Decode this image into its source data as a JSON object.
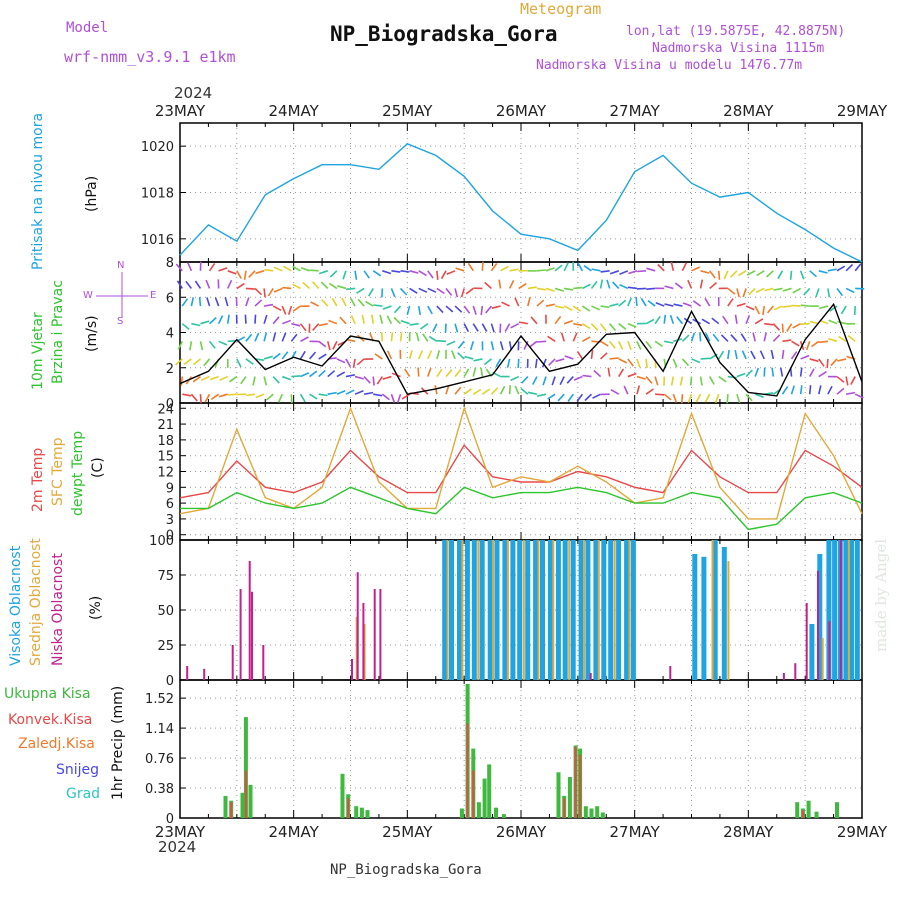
{
  "header": {
    "model_label": "Model",
    "model_name": "wrf-nmm_v3.9.1  e1km",
    "meteogram_label": "Meteogram",
    "station_title": "NP_Biogradska_Gora",
    "coords": "lon,lat (19.5875E, 42.8875N)",
    "elevation": "Nadmorska Visina 1115m",
    "model_elevation": "Nadmorska Visina u modelu 1476.77m",
    "year": "2024",
    "dates": [
      "23MAY",
      "24MAY",
      "25MAY",
      "26MAY",
      "27MAY",
      "28MAY",
      "29MAY"
    ],
    "footer_station": "NP_Biogradska_Gora",
    "made_by": "made by Angel"
  },
  "labels": {
    "pressure_name": "Pritisak na nivou mora",
    "pressure_unit": "(hPa)",
    "wind_name_1": "10m Vjetar",
    "wind_name_2": "Brzina i Pravac",
    "wind_unit": "(m/s)",
    "compass": {
      "n": "N",
      "s": "S",
      "w": "W",
      "e": "E"
    },
    "temp_2m": "2m Temp",
    "temp_sfc": "SFC Temp",
    "temp_dew": "dewpt Temp",
    "temp_unit": "(C)",
    "cloud_high": "Visoka Oblacnost",
    "cloud_mid": "Srednja Oblacnost",
    "cloud_low": "Niska Oblacnost",
    "cloud_unit": "(%)",
    "precip_name": "1hr Precip",
    "precip_unit": "(mm)",
    "precip_total": "Ukupna Kisa",
    "precip_conv": "Konvek.Kisa",
    "precip_frz": "Zaledj.Kisa",
    "precip_snow": "Snijeg",
    "precip_hail": "Grad"
  },
  "colors": {
    "pressure": "#1ea3e3",
    "temp_2m": "#e84848",
    "temp_sfc": "#e3a83a",
    "temp_dew": "#2ec42e",
    "cloud_high": "#1ea3e3",
    "cloud_mid": "#e3a83a",
    "cloud_low": "#c2208e",
    "precip_total": "#3eb83e",
    "precip_conv": "#e84848",
    "precip_frz": "#f07a2a",
    "precip_snow": "#4848e0",
    "precip_hail": "#2ec4c4",
    "label_purple": "#b04fd8"
  },
  "chart_data": [
    {
      "type": "line",
      "name": "pressure",
      "ylabel": "Pritisak na nivou mora (hPa)",
      "x_days": [
        0,
        0.25,
        0.5,
        0.75,
        1,
        1.25,
        1.5,
        1.75,
        2,
        2.25,
        2.5,
        2.75,
        3,
        3.25,
        3.5,
        3.75,
        4,
        4.25,
        4.5,
        4.75,
        5,
        5.25,
        5.5,
        5.75,
        6
      ],
      "y_hpa": [
        1015.3,
        1016.6,
        1015.9,
        1017.9,
        1018.6,
        1019.2,
        1019.2,
        1019.0,
        1020.1,
        1019.6,
        1018.7,
        1017.2,
        1016.2,
        1016.0,
        1015.5,
        1016.8,
        1018.9,
        1019.6,
        1018.4,
        1017.8,
        1018.0,
        1017.1,
        1016.4,
        1015.6,
        1015.0
      ],
      "ylim": [
        1015,
        1021
      ],
      "yticks": [
        1016,
        1018,
        1020
      ]
    },
    {
      "type": "line",
      "name": "wind_speed",
      "ylabel": "10m Vjetar Brzina i Pravac (m/s)",
      "x_days": [
        0,
        0.25,
        0.5,
        0.75,
        1,
        1.25,
        1.5,
        1.75,
        2,
        2.25,
        2.5,
        2.75,
        3,
        3.25,
        3.5,
        3.75,
        4,
        4.25,
        4.5,
        4.75,
        5,
        5.25,
        5.5,
        5.75,
        6
      ],
      "y_ms": [
        1.1,
        1.8,
        3.6,
        1.9,
        2.6,
        2.1,
        3.8,
        3.5,
        0.5,
        0.8,
        1.2,
        1.6,
        3.8,
        1.8,
        2.2,
        3.9,
        4.0,
        1.8,
        5.2,
        2.3,
        0.6,
        0.4,
        3.6,
        5.6,
        1.2
      ],
      "ylim": [
        0,
        8
      ],
      "yticks": [
        0,
        2,
        4,
        6,
        8
      ]
    },
    {
      "type": "line",
      "name": "temperature",
      "ylabel": "(C)",
      "x_days": [
        0,
        0.25,
        0.5,
        0.75,
        1,
        1.25,
        1.5,
        1.75,
        2,
        2.25,
        2.5,
        2.75,
        3,
        3.25,
        3.5,
        3.75,
        4,
        4.25,
        4.5,
        4.75,
        5,
        5.25,
        5.5,
        5.75,
        6
      ],
      "series": [
        {
          "name": "2m Temp",
          "values": [
            7,
            8,
            14,
            9,
            8,
            10,
            16,
            11,
            8,
            8,
            17,
            11,
            10,
            10,
            12,
            11,
            9,
            8,
            16,
            11,
            8,
            8,
            16,
            13,
            9
          ]
        },
        {
          "name": "SFC Temp",
          "values": [
            4,
            5,
            20,
            7,
            5,
            9,
            24,
            10,
            5,
            5,
            24,
            9,
            11,
            10,
            13,
            10,
            6,
            7,
            23,
            9,
            3,
            3,
            23,
            15,
            4
          ]
        },
        {
          "name": "dewpt Temp",
          "values": [
            5,
            5,
            8,
            6,
            5,
            6,
            9,
            7,
            5,
            4,
            9,
            7,
            8,
            8,
            9,
            8,
            6,
            6,
            8,
            7,
            1,
            2,
            7,
            8,
            6
          ]
        }
      ],
      "ylim": [
        -1,
        25
      ],
      "yticks": [
        0,
        3,
        6,
        9,
        12,
        15,
        18,
        21,
        24
      ]
    },
    {
      "type": "bar",
      "name": "cloud_cover",
      "ylabel": "(%)",
      "ylim": [
        0,
        100
      ],
      "yticks": [
        0,
        25,
        50,
        75,
        100
      ],
      "series": [
        {
          "name": "Visoka Oblacnost",
          "bars": [
            [
              2.32,
              100
            ],
            [
              2.38,
              100
            ],
            [
              2.45,
              100
            ],
            [
              2.52,
              100
            ],
            [
              2.58,
              100
            ],
            [
              2.65,
              100
            ],
            [
              2.72,
              100
            ],
            [
              2.78,
              100
            ],
            [
              2.85,
              100
            ],
            [
              2.92,
              100
            ],
            [
              2.98,
              100
            ],
            [
              3.05,
              100
            ],
            [
              3.12,
              100
            ],
            [
              3.18,
              100
            ],
            [
              3.25,
              100
            ],
            [
              3.32,
              100
            ],
            [
              3.38,
              100
            ],
            [
              3.45,
              100
            ],
            [
              3.52,
              100
            ],
            [
              3.58,
              100
            ],
            [
              3.65,
              100
            ],
            [
              3.72,
              100
            ],
            [
              3.78,
              100
            ],
            [
              3.85,
              100
            ],
            [
              3.92,
              100
            ],
            [
              3.98,
              100
            ],
            [
              4.52,
              90
            ],
            [
              4.6,
              88
            ],
            [
              4.7,
              100
            ],
            [
              4.78,
              95
            ],
            [
              5.55,
              40
            ],
            [
              5.62,
              90
            ],
            [
              5.7,
              100
            ],
            [
              5.75,
              100
            ],
            [
              5.8,
              100
            ],
            [
              5.85,
              100
            ],
            [
              5.9,
              100
            ],
            [
              5.95,
              100
            ]
          ]
        },
        {
          "name": "Srednja Oblacnost",
          "bars": [
            [
              1.55,
              45
            ],
            [
              1.62,
              40
            ],
            [
              2.35,
              100
            ],
            [
              2.48,
              100
            ],
            [
              2.62,
              100
            ],
            [
              2.75,
              100
            ],
            [
              2.88,
              100
            ],
            [
              3.02,
              100
            ],
            [
              3.15,
              100
            ],
            [
              3.28,
              100
            ],
            [
              3.42,
              100
            ],
            [
              3.55,
              100
            ],
            [
              3.68,
              100
            ],
            [
              3.82,
              100
            ],
            [
              3.95,
              100
            ],
            [
              4.68,
              100
            ],
            [
              4.82,
              85
            ],
            [
              5.65,
              30
            ],
            [
              5.88,
              100
            ]
          ]
        },
        {
          "name": "Niska Oblacnost",
          "bars": [
            [
              0.05,
              10
            ],
            [
              0.2,
              8
            ],
            [
              0.45,
              25
            ],
            [
              0.52,
              65
            ],
            [
              0.6,
              85
            ],
            [
              0.62,
              63
            ],
            [
              0.72,
              25
            ],
            [
              1.5,
              15
            ],
            [
              1.55,
              77
            ],
            [
              1.6,
              55
            ],
            [
              1.7,
              65
            ],
            [
              1.75,
              65
            ],
            [
              3.6,
              5
            ],
            [
              4.3,
              10
            ],
            [
              5.3,
              5
            ],
            [
              5.4,
              12
            ],
            [
              5.5,
              55
            ],
            [
              5.6,
              78
            ],
            [
              5.7,
              42
            ],
            [
              5.8,
              100
            ]
          ]
        }
      ]
    },
    {
      "type": "bar",
      "name": "precipitation",
      "ylabel": "1hr Precip (mm)",
      "ylim": [
        0,
        1.75
      ],
      "yticks": [
        0,
        0.38,
        0.76,
        1.14,
        1.52
      ],
      "series": [
        {
          "name": "Ukupna Kisa",
          "bars": [
            [
              0.4,
              0.28
            ],
            [
              0.45,
              0.22
            ],
            [
              0.55,
              0.32
            ],
            [
              0.58,
              1.28
            ],
            [
              0.62,
              0.42
            ],
            [
              1.43,
              0.56
            ],
            [
              1.48,
              0.3
            ],
            [
              1.55,
              0.15
            ],
            [
              1.6,
              0.13
            ],
            [
              1.65,
              0.1
            ],
            [
              2.48,
              0.12
            ],
            [
              2.53,
              1.7
            ],
            [
              2.58,
              0.88
            ],
            [
              2.63,
              0.2
            ],
            [
              2.68,
              0.5
            ],
            [
              2.72,
              0.68
            ],
            [
              2.78,
              0.13
            ],
            [
              2.85,
              0.05
            ],
            [
              3.33,
              0.58
            ],
            [
              3.38,
              0.28
            ],
            [
              3.43,
              0.52
            ],
            [
              3.48,
              0.92
            ],
            [
              3.52,
              0.88
            ],
            [
              3.57,
              0.15
            ],
            [
              3.62,
              0.12
            ],
            [
              3.67,
              0.15
            ],
            [
              3.72,
              0.07
            ],
            [
              5.43,
              0.2
            ],
            [
              5.48,
              0.12
            ],
            [
              5.53,
              0.22
            ],
            [
              5.6,
              0.08
            ],
            [
              5.78,
              0.2
            ]
          ]
        },
        {
          "name": "Konvek.Kisa",
          "bars": [
            [
              0.45,
              0.2
            ],
            [
              0.58,
              0.6
            ],
            [
              1.48,
              0.25
            ],
            [
              2.53,
              1.2
            ],
            [
              2.58,
              0.6
            ],
            [
              3.38,
              0.25
            ],
            [
              3.48,
              0.9
            ],
            [
              3.52,
              0.8
            ],
            [
              5.48,
              0.1
            ]
          ]
        }
      ]
    }
  ]
}
